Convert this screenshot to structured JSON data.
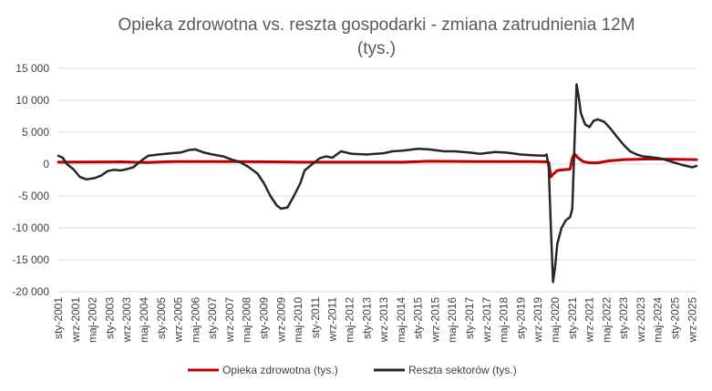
{
  "chart_data": {
    "type": "line",
    "title": "Opieka zdrowotna vs. reszta gospodarki - zmiana zatrudnienia 12M",
    "subtitle": "(tys.)",
    "xlabel": "",
    "ylabel": "",
    "ylim": [
      -20000,
      15000
    ],
    "yticks": [
      15000,
      10000,
      5000,
      0,
      -5000,
      -10000,
      -15000,
      -20000
    ],
    "ytick_labels": [
      "15 000",
      "10 000",
      "5 000",
      "0",
      "-5 000",
      "-10 000",
      "-15 000",
      "-20 000"
    ],
    "grid": true,
    "legend_position": "bottom",
    "x_start": "2001-01",
    "x_end": "2025-11",
    "x_tick_labels": [
      "sty-2001",
      "wrz-2001",
      "maj-2002",
      "sty-2003",
      "wrz-2003",
      "maj-2004",
      "sty-2005",
      "wrz-2005",
      "maj-2006",
      "sty-2007",
      "wrz-2007",
      "maj-2008",
      "sty-2009",
      "wrz-2009",
      "maj-2010",
      "sty-2011",
      "wrz-2011",
      "maj-2012",
      "sty-2013",
      "wrz-2013",
      "maj-2014",
      "sty-2015",
      "wrz-2015",
      "maj-2016",
      "sty-2017",
      "wrz-2017",
      "maj-2018",
      "sty-2019",
      "wrz-2019",
      "maj-2020",
      "sty-2021",
      "wrz-2021",
      "maj-2022",
      "sty-2023",
      "wrz-2023",
      "maj-2024",
      "sty-2025",
      "wrz-2025"
    ],
    "series": [
      {
        "name": "Opieka zdrowotna (tys.)",
        "color": "#c00000",
        "points": [
          [
            "2001-01",
            300
          ],
          [
            "2003-06",
            350
          ],
          [
            "2004-06",
            250
          ],
          [
            "2005-06",
            400
          ],
          [
            "2007-06",
            400
          ],
          [
            "2009-01",
            350
          ],
          [
            "2010-06",
            300
          ],
          [
            "2012-06",
            300
          ],
          [
            "2014-06",
            300
          ],
          [
            "2015-06",
            450
          ],
          [
            "2017-06",
            400
          ],
          [
            "2019-06",
            400
          ],
          [
            "2020-01",
            350
          ],
          [
            "2020-02",
            300
          ],
          [
            "2020-03",
            -2000
          ],
          [
            "2020-04",
            -1600
          ],
          [
            "2020-05",
            -1300
          ],
          [
            "2020-06",
            -1000
          ],
          [
            "2020-09",
            -900
          ],
          [
            "2020-12",
            -800
          ],
          [
            "2021-01",
            900
          ],
          [
            "2021-02",
            1600
          ],
          [
            "2021-03",
            1200
          ],
          [
            "2021-04",
            900
          ],
          [
            "2021-06",
            400
          ],
          [
            "2021-09",
            200
          ],
          [
            "2022-01",
            200
          ],
          [
            "2022-06",
            500
          ],
          [
            "2023-01",
            700
          ],
          [
            "2024-01",
            800
          ],
          [
            "2025-11",
            700
          ]
        ]
      },
      {
        "name": "Reszta sektorów (tys.)",
        "color": "#262626",
        "points": [
          [
            "2001-01",
            1300
          ],
          [
            "2001-03",
            1000
          ],
          [
            "2001-05",
            0
          ],
          [
            "2001-08",
            -800
          ],
          [
            "2001-11",
            -2000
          ],
          [
            "2002-02",
            -2400
          ],
          [
            "2002-06",
            -2200
          ],
          [
            "2002-09",
            -1800
          ],
          [
            "2002-12",
            -1100
          ],
          [
            "2003-03",
            -900
          ],
          [
            "2003-06",
            -1000
          ],
          [
            "2003-09",
            -800
          ],
          [
            "2003-12",
            -500
          ],
          [
            "2004-04",
            600
          ],
          [
            "2004-07",
            1300
          ],
          [
            "2004-12",
            1500
          ],
          [
            "2005-06",
            1700
          ],
          [
            "2005-10",
            1800
          ],
          [
            "2006-02",
            2200
          ],
          [
            "2006-05",
            2300
          ],
          [
            "2006-09",
            1800
          ],
          [
            "2007-01",
            1500
          ],
          [
            "2007-06",
            1200
          ],
          [
            "2007-10",
            700
          ],
          [
            "2008-02",
            300
          ],
          [
            "2008-06",
            -500
          ],
          [
            "2008-10",
            -1500
          ],
          [
            "2009-01",
            -3000
          ],
          [
            "2009-04",
            -5000
          ],
          [
            "2009-07",
            -6500
          ],
          [
            "2009-09",
            -7000
          ],
          [
            "2009-12",
            -6800
          ],
          [
            "2010-03",
            -5000
          ],
          [
            "2010-06",
            -3000
          ],
          [
            "2010-08",
            -1000
          ],
          [
            "2010-12",
            100
          ],
          [
            "2011-03",
            900
          ],
          [
            "2011-06",
            1200
          ],
          [
            "2011-09",
            1000
          ],
          [
            "2012-01",
            2000
          ],
          [
            "2012-06",
            1600
          ],
          [
            "2013-01",
            1500
          ],
          [
            "2013-09",
            1700
          ],
          [
            "2014-01",
            2000
          ],
          [
            "2014-06",
            2100
          ],
          [
            "2015-01",
            2400
          ],
          [
            "2015-06",
            2300
          ],
          [
            "2016-01",
            2000
          ],
          [
            "2016-06",
            2000
          ],
          [
            "2017-01",
            1800
          ],
          [
            "2017-06",
            1600
          ],
          [
            "2018-01",
            1900
          ],
          [
            "2018-06",
            1800
          ],
          [
            "2019-01",
            1500
          ],
          [
            "2019-06",
            1400
          ],
          [
            "2019-12",
            1300
          ],
          [
            "2020-01",
            1500
          ],
          [
            "2020-02",
            -500
          ],
          [
            "2020-03",
            -10000
          ],
          [
            "2020-04",
            -18500
          ],
          [
            "2020-05",
            -16000
          ],
          [
            "2020-06",
            -12500
          ],
          [
            "2020-08",
            -10000
          ],
          [
            "2020-10",
            -8800
          ],
          [
            "2020-12",
            -8300
          ],
          [
            "2021-01",
            -7000
          ],
          [
            "2021-02",
            3000
          ],
          [
            "2021-03",
            12500
          ],
          [
            "2021-04",
            10500
          ],
          [
            "2021-05",
            8000
          ],
          [
            "2021-07",
            6200
          ],
          [
            "2021-09",
            5800
          ],
          [
            "2021-11",
            6800
          ],
          [
            "2022-01",
            7000
          ],
          [
            "2022-04",
            6600
          ],
          [
            "2022-07",
            5500
          ],
          [
            "2022-10",
            4200
          ],
          [
            "2023-01",
            3000
          ],
          [
            "2023-04",
            2000
          ],
          [
            "2023-07",
            1500
          ],
          [
            "2023-10",
            1200
          ],
          [
            "2024-01",
            1100
          ],
          [
            "2024-06",
            900
          ],
          [
            "2024-12",
            300
          ],
          [
            "2025-05",
            -200
          ],
          [
            "2025-09",
            -500
          ],
          [
            "2025-11",
            -300
          ]
        ]
      }
    ]
  }
}
